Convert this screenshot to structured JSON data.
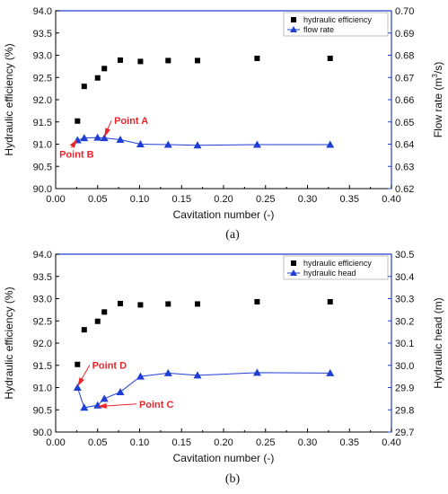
{
  "chart_data": [
    {
      "type": "scatter",
      "caption": "(a)",
      "xlabel": "Cavitation number (-)",
      "ylabel_left": "Hydraulic efficiency (%)",
      "ylabel_right_prefix": "Flow rate (m",
      "ylabel_right_sup": "3",
      "ylabel_right_suffix": "/s)",
      "xlim": [
        0.0,
        0.4
      ],
      "xticks": [
        "0.00",
        "0.05",
        "0.10",
        "0.15",
        "0.20",
        "0.25",
        "0.30",
        "0.35",
        "0.40"
      ],
      "ylim_left": [
        90.0,
        94.0
      ],
      "yticks_left": [
        "90.0",
        "90.5",
        "91.0",
        "91.5",
        "92.0",
        "92.5",
        "93.0",
        "93.5",
        "94.0"
      ],
      "ylim_right": [
        0.62,
        0.7
      ],
      "yticks_right": [
        "0.62",
        "0.63",
        "0.64",
        "0.65",
        "0.66",
        "0.67",
        "0.68",
        "0.69",
        "0.70"
      ],
      "right_axis_color": "#1f3fd4",
      "legend_position": "top-right",
      "series": [
        {
          "name": "hydraulic efficiency",
          "axis": "left",
          "marker": "square",
          "color": "#000000",
          "connected": false,
          "x": [
            0.026,
            0.034,
            0.05,
            0.058,
            0.077,
            0.101,
            0.134,
            0.169,
            0.24,
            0.327
          ],
          "y": [
            91.52,
            92.3,
            92.49,
            92.7,
            92.89,
            92.86,
            92.88,
            92.88,
            92.93,
            92.93
          ]
        },
        {
          "name": "flow rate",
          "axis": "right",
          "marker": "triangle",
          "color": "#1f3fd4",
          "connected": true,
          "x": [
            0.026,
            0.034,
            0.05,
            0.058,
            0.077,
            0.101,
            0.134,
            0.169,
            0.24,
            0.327
          ],
          "y": [
            0.6418,
            0.6428,
            0.643,
            0.6428,
            0.642,
            0.64,
            0.6398,
            0.6395,
            0.6398,
            0.6398
          ]
        }
      ],
      "annotations": [
        {
          "text": "Point A",
          "at_x": 0.058,
          "at_y": 0.6432,
          "axis": "right",
          "label_x": 0.09,
          "label_y": 0.649
        },
        {
          "text": "Point B",
          "at_x": 0.026,
          "at_y": 0.6422,
          "axis": "right",
          "label_x": 0.025,
          "label_y": 0.634
        }
      ]
    },
    {
      "type": "scatter",
      "caption": "(b)",
      "xlabel": "Cavitation number (-)",
      "ylabel_left": "Hydraulic efficiency (%)",
      "ylabel_right": "Hydraulic head (m)",
      "xlim": [
        0.0,
        0.4
      ],
      "xticks": [
        "0.00",
        "0.05",
        "0.10",
        "0.15",
        "0.20",
        "0.25",
        "0.30",
        "0.35",
        "0.40"
      ],
      "ylim_left": [
        90.0,
        94.0
      ],
      "yticks_left": [
        "90.0",
        "90.5",
        "91.0",
        "91.5",
        "92.0",
        "92.5",
        "93.0",
        "93.5",
        "94.0"
      ],
      "ylim_right": [
        29.7,
        30.5
      ],
      "yticks_right": [
        "29.7",
        "29.8",
        "29.9",
        "30.0",
        "30.1",
        "30.2",
        "30.3",
        "30.4",
        "30.5"
      ],
      "right_axis_color": "#1f3fd4",
      "legend_position": "top-right",
      "series": [
        {
          "name": "hydraulic efficiency",
          "axis": "left",
          "marker": "square",
          "color": "#000000",
          "connected": false,
          "x": [
            0.026,
            0.034,
            0.05,
            0.058,
            0.077,
            0.101,
            0.134,
            0.169,
            0.24,
            0.327
          ],
          "y": [
            91.52,
            92.3,
            92.49,
            92.7,
            92.89,
            92.86,
            92.88,
            92.88,
            92.93,
            92.93
          ]
        },
        {
          "name": "hydraulic head",
          "axis": "right",
          "marker": "triangle",
          "color": "#1f3fd4",
          "connected": true,
          "x": [
            0.026,
            0.034,
            0.05,
            0.058,
            0.077,
            0.101,
            0.134,
            0.169,
            0.24,
            0.327
          ],
          "y": [
            29.9,
            29.81,
            29.82,
            29.85,
            29.88,
            29.95,
            29.965,
            29.955,
            29.967,
            29.965
          ]
        }
      ],
      "annotations": [
        {
          "text": "Point D",
          "at_x": 0.026,
          "at_y": 29.905,
          "axis": "right",
          "label_x": 0.064,
          "label_y": 29.985
        },
        {
          "text": "Point C",
          "at_x": 0.05,
          "at_y": 29.815,
          "axis": "right",
          "label_x": 0.12,
          "label_y": 29.81
        }
      ]
    }
  ]
}
